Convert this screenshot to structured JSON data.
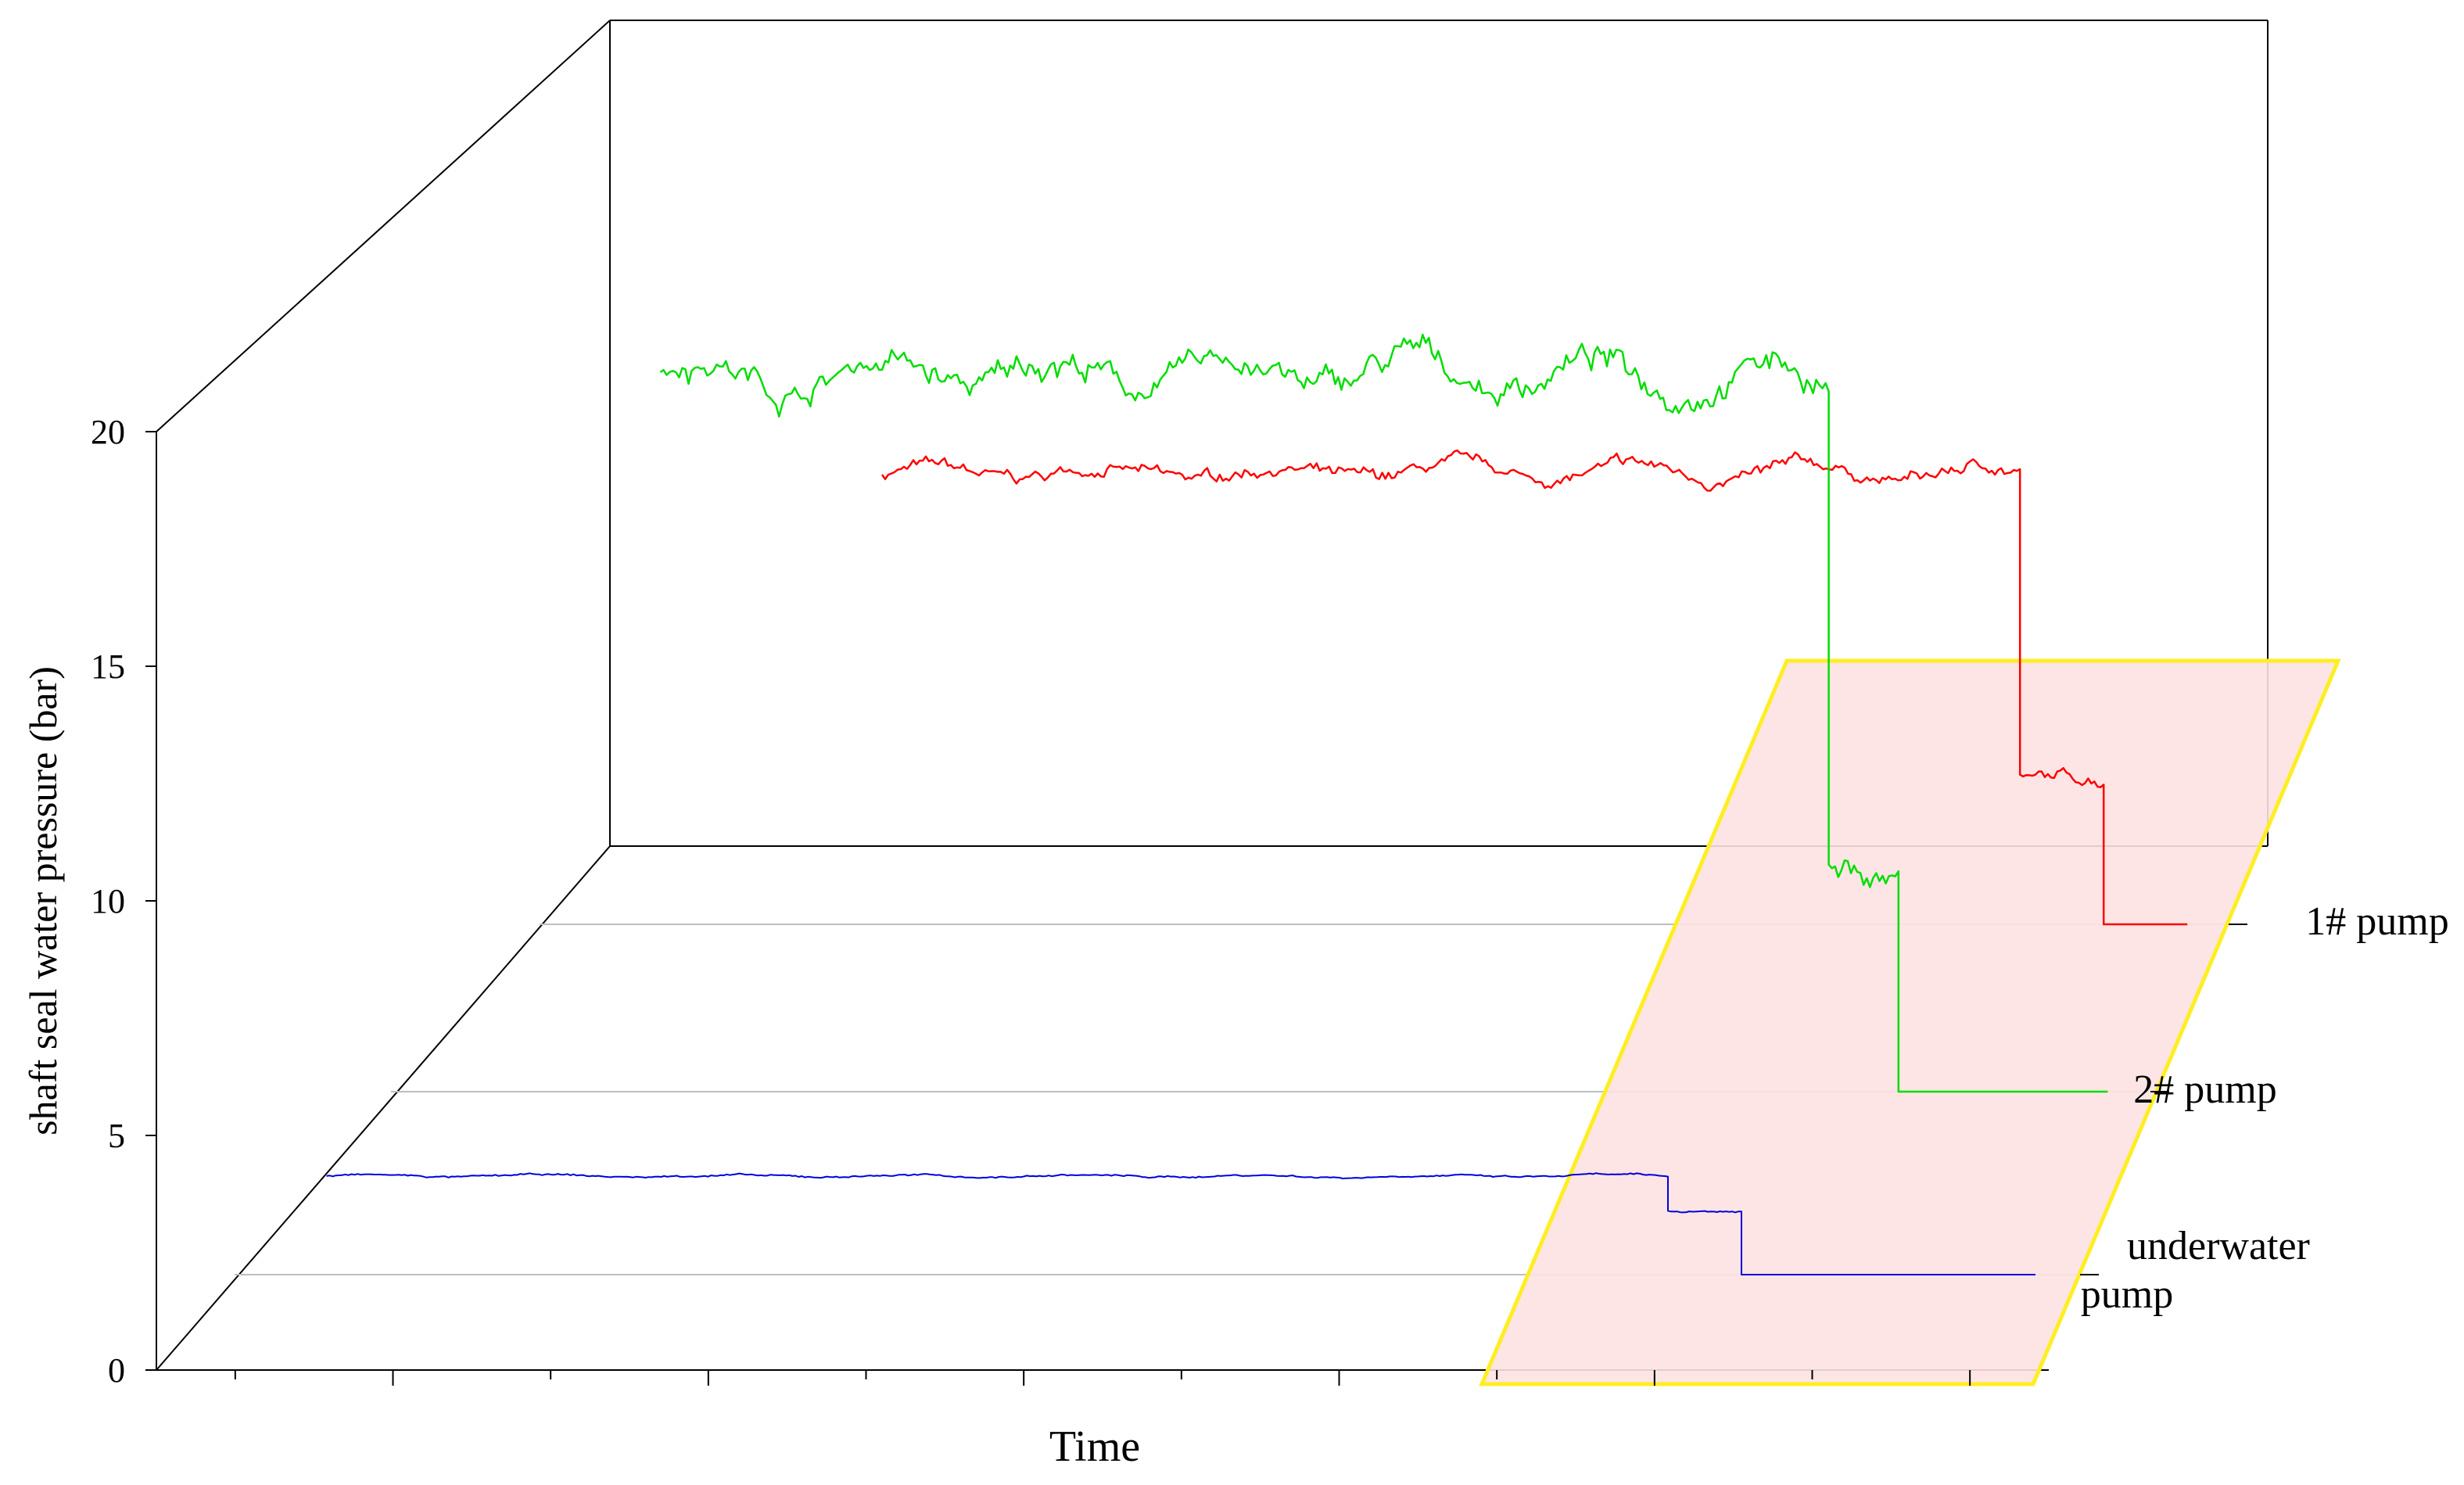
{
  "chart_data": {
    "type": "line",
    "title": "",
    "xlabel": "Time",
    "ylabel": "shaft seal water pressure (bar)",
    "ylim": [
      0,
      20
    ],
    "yticks": [
      "0",
      "5",
      "10",
      "15",
      "20"
    ],
    "x_axis_has_tick_labels": false,
    "projection": "3d",
    "highlight_region": {
      "fill": "#fde2e2",
      "stroke": "#ffee22"
    },
    "series": [
      {
        "name": "1# pump",
        "color": "#ff0000",
        "baseline": 9.6,
        "segments": [
          {
            "t_start": 0.2,
            "t_end": 0.88,
            "value": 9.6
          },
          {
            "t_start": 0.88,
            "t_end": 0.93,
            "value": 3.1
          },
          {
            "t_start": 0.93,
            "t_end": 0.98,
            "value": 0.0
          }
        ]
      },
      {
        "name": "2# pump",
        "color": "#00dd00",
        "baseline": 6.0,
        "segments": [
          {
            "t_start": 0.15,
            "t_end": 0.82,
            "value": 15.3
          },
          {
            "t_start": 0.82,
            "t_end": 0.86,
            "value": 4.6
          },
          {
            "t_start": 0.86,
            "t_end": 0.98,
            "value": 0.0
          }
        ]
      },
      {
        "name": "underwater pump",
        "color": "#0000dd",
        "baseline": 2.1,
        "segments": [
          {
            "t_start": 0.05,
            "t_end": 0.78,
            "value": 2.1
          },
          {
            "t_start": 0.78,
            "t_end": 0.82,
            "value": 1.35
          },
          {
            "t_start": 0.82,
            "t_end": 0.98,
            "value": 0.0
          }
        ]
      }
    ],
    "series_labels": [
      {
        "text": "1# pump",
        "lines": [
          "1# pump"
        ]
      },
      {
        "text": "2# pump",
        "lines": [
          "2# pump"
        ]
      },
      {
        "text": "underwater pump",
        "lines": [
          "underwater",
          "pump"
        ]
      }
    ]
  }
}
